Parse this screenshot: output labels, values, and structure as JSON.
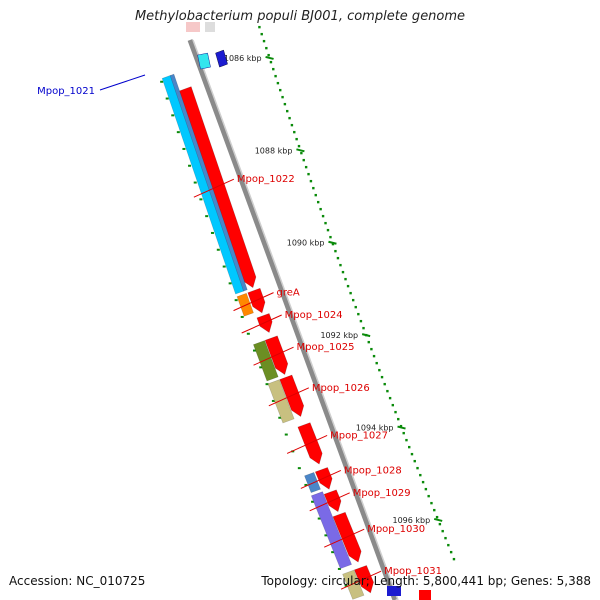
{
  "title": "Methylobacterium populi BJ001, complete genome",
  "footer": {
    "accession_label": "Accession: ",
    "accession": "NC_010725",
    "topology_label": "Topology: ",
    "topology": "circular",
    "length_label": "; Length: ",
    "length": "5,800,441 bp",
    "genes_label": "; Genes: ",
    "genes": "5,388"
  },
  "ruler": {
    "ticks": [
      {
        "label": "1086 kbp",
        "t": 0.075
      },
      {
        "label": "1088 kbp",
        "t": 0.24
      },
      {
        "label": "1090 kbp",
        "t": 0.405
      },
      {
        "label": "1092 kbp",
        "t": 0.57
      },
      {
        "label": "1094 kbp",
        "t": 0.735
      },
      {
        "label": "1096 kbp",
        "t": 0.9
      }
    ]
  },
  "genes": [
    {
      "label": "Mpop_1021",
      "label_color": "#0000cc",
      "side": "left",
      "feature_color": "#1c1cd0",
      "t0": 0.05,
      "t1": 0.09,
      "strand": "+"
    },
    {
      "label": "Mpop_1022",
      "label_color": "#dd0000",
      "side": "right",
      "feature_color": "#ff0000",
      "t0": 0.075,
      "t1": 0.43,
      "strand": "+"
    },
    {
      "label": "greA",
      "label_color": "#dd0000",
      "side": "right",
      "feature_color": "#ff0000",
      "t0": 0.435,
      "t1": 0.475,
      "strand": "+"
    },
    {
      "label": "Mpop_1024",
      "label_color": "#dd0000",
      "side": "right",
      "feature_color": "#ff0000",
      "t0": 0.48,
      "t1": 0.51,
      "strand": "+"
    },
    {
      "label": "Mpop_1025",
      "label_color": "#dd0000",
      "side": "right",
      "feature_color": "#ff0000",
      "t0": 0.52,
      "t1": 0.585,
      "strand": "+"
    },
    {
      "label": "Mpop_1026",
      "label_color": "#dd0000",
      "side": "right",
      "feature_color": "#ff0000",
      "t0": 0.59,
      "t1": 0.66,
      "strand": "+"
    },
    {
      "label": "Mpop_1027",
      "label_color": "#dd0000",
      "side": "right",
      "feature_color": "#ff0000",
      "t0": 0.675,
      "t1": 0.745,
      "strand": "+"
    },
    {
      "label": "Mpop_1028",
      "label_color": "#dd0000",
      "side": "right",
      "feature_color": "#ff0000",
      "t0": 0.755,
      "t1": 0.79,
      "strand": "+"
    },
    {
      "label": "Mpop_1029",
      "label_color": "#dd0000",
      "side": "right",
      "feature_color": "#ff0000",
      "t0": 0.795,
      "t1": 0.83,
      "strand": "+"
    },
    {
      "label": "Mpop_1030",
      "label_color": "#dd0000",
      "side": "right",
      "feature_color": "#ff0000",
      "t0": 0.835,
      "t1": 0.92,
      "strand": "+"
    },
    {
      "label": "Mpop_1031",
      "label_color": "#dd0000",
      "side": "right",
      "feature_color": "#ff0000",
      "t0": 0.93,
      "t1": 0.975,
      "strand": "+"
    }
  ],
  "colors": {
    "backbone": "#8a8a8a",
    "cds": "#ff0000",
    "cyan": "#00c8ff",
    "steelblue": "#4a86c8",
    "orange": "#ff8800",
    "olive": "#6b8e23",
    "khaki": "#c8c080",
    "purple": "#7a6ae6",
    "ruler": "#0a8a0a"
  }
}
